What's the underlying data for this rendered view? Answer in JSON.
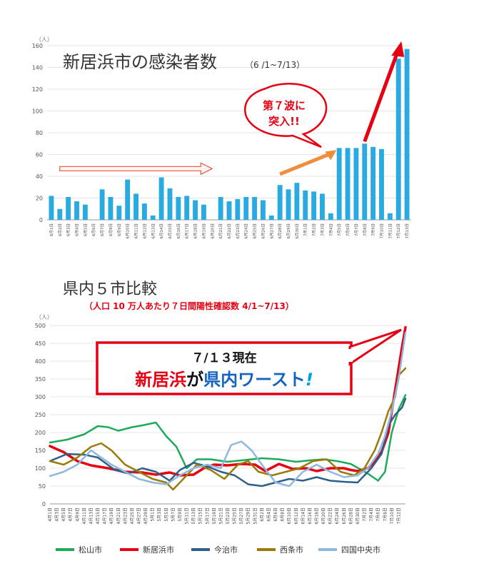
{
  "chart_data": [
    {
      "type": "bar",
      "title": "新居浜市の感染者数",
      "subtitle": "（6 /1~7/13）",
      "ylabel": "（人）",
      "ylim": [
        0,
        160
      ],
      "yticks": [
        0,
        20,
        40,
        60,
        80,
        100,
        120,
        140,
        160
      ],
      "color": "#29abe2",
      "categories": [
        "6月1日",
        "6月2日",
        "6月3日",
        "6月4日",
        "6月5日",
        "6月6日",
        "6月7日",
        "6月8日",
        "6月9日",
        "6月10日",
        "6月11日",
        "6月12日",
        "6月13日",
        "6月14日",
        "6月15日",
        "6月16日",
        "6月17日",
        "6月18日",
        "6月19日",
        "6月20日",
        "6月21日",
        "6月22日",
        "6月23日",
        "6月24日",
        "6月25日",
        "6月26日",
        "6月27日",
        "6月28日",
        "6月29日",
        "6月30日",
        "7月1日",
        "7月2日",
        "7月3日",
        "7月4日",
        "7月5日",
        "7月6日",
        "7月7日",
        "7月8日",
        "7月9日",
        "7月10日",
        "7月11日",
        "7月12日",
        "7月13日"
      ],
      "values": [
        22,
        10,
        21,
        17,
        14,
        0,
        28,
        21,
        13,
        37,
        24,
        15,
        4,
        39,
        29,
        21,
        22,
        18,
        14,
        0,
        21,
        17,
        19,
        21,
        21,
        18,
        4,
        32,
        28,
        34,
        27,
        26,
        24,
        6,
        66,
        66,
        66,
        70,
        67,
        65,
        6,
        148,
        157
      ],
      "annotations": [
        {
          "text": "第７波に突入!!",
          "color": "#e60012"
        }
      ],
      "arrows": [
        {
          "from_index": 1,
          "to_index": 19,
          "y": 47,
          "style": "hollow-red"
        },
        {
          "from_index": 27,
          "to_index": 33,
          "y_from": 42,
          "y_to": 64,
          "style": "orange"
        },
        {
          "from_index": 37,
          "to_index": 41,
          "y_from": 72,
          "y_to": 164,
          "style": "red-thick"
        }
      ]
    },
    {
      "type": "line",
      "title": "県内５市比較",
      "subtitle": "（人口 10 万人あたり７日間陽性確認数 4/1~7/13）",
      "ylabel": "（人）",
      "ylim": [
        0,
        500
      ],
      "yticks": [
        0,
        50,
        100,
        150,
        200,
        250,
        300,
        350,
        400,
        450,
        500
      ],
      "x_start": "4月1日",
      "x_end": "7月13日",
      "xticks": [
        "4月1日",
        "4月3日",
        "4月5日",
        "4月7日",
        "4月9日",
        "4月11日",
        "4月13日",
        "4月15日",
        "4月17日",
        "4月19日",
        "4月21日",
        "4月23日",
        "4月25日",
        "4月27日",
        "4月29日",
        "5月1日",
        "5月3日",
        "5月5日",
        "5月7日",
        "5月9日",
        "5月11日",
        "5月13日",
        "5月15日",
        "5月17日",
        "5月19日",
        "5月21日",
        "5月23日",
        "5月25日",
        "5月27日",
        "5月29日",
        "5月31日",
        "6月2日",
        "6月4日",
        "6月6日",
        "6月8日",
        "6月10日",
        "6月12日",
        "6月14日",
        "6月16日",
        "6月18日",
        "6月20日",
        "6月22日",
        "6月24日",
        "6月26日",
        "6月28日",
        "6月30日",
        "7月2日",
        "7月4日",
        "7月6日",
        "7月8日",
        "7月10日",
        "7月12日"
      ],
      "callout": {
        "line1": "７/１３現在",
        "line2_parts": [
          {
            "text": "新居浜",
            "color": "#e60012"
          },
          {
            "text": "が",
            "color": "#111111"
          },
          {
            "text": "県内ワースト",
            "color": "#1565c0"
          },
          {
            "text": "!",
            "color": "#00a0e9"
          }
        ]
      },
      "series": [
        {
          "name": "松山市",
          "color": "#1faa59",
          "width": 2.5,
          "points": [
            [
              0,
              172
            ],
            [
              5,
              180
            ],
            [
              10,
              195
            ],
            [
              14,
              218
            ],
            [
              17,
              215
            ],
            [
              20,
              205
            ],
            [
              24,
              215
            ],
            [
              27,
              220
            ],
            [
              31,
              228
            ],
            [
              34,
              190
            ],
            [
              37,
              160
            ],
            [
              40,
              100
            ],
            [
              43,
              125
            ],
            [
              47,
              125
            ],
            [
              52,
              118
            ],
            [
              57,
              123
            ],
            [
              62,
              128
            ],
            [
              67,
              125
            ],
            [
              72,
              118
            ],
            [
              76,
              122
            ],
            [
              80,
              125
            ],
            [
              84,
              120
            ],
            [
              88,
              112
            ],
            [
              93,
              85
            ],
            [
              96,
              65
            ],
            [
              98,
              90
            ],
            [
              100,
              200
            ],
            [
              102,
              265
            ],
            [
              104,
              305
            ]
          ]
        },
        {
          "name": "新居浜市",
          "color": "#e60012",
          "width": 3.5,
          "points": [
            [
              0,
              162
            ],
            [
              4,
              145
            ],
            [
              8,
              120
            ],
            [
              12,
              108
            ],
            [
              17,
              100
            ],
            [
              22,
              90
            ],
            [
              27,
              88
            ],
            [
              31,
              82
            ],
            [
              35,
              88
            ],
            [
              38,
              80
            ],
            [
              42,
              82
            ],
            [
              45,
              100
            ],
            [
              48,
              110
            ],
            [
              52,
              108
            ],
            [
              56,
              112
            ],
            [
              60,
              110
            ],
            [
              63,
              92
            ],
            [
              67,
              112
            ],
            [
              71,
              98
            ],
            [
              75,
              100
            ],
            [
              78,
              92
            ],
            [
              82,
              100
            ],
            [
              86,
              100
            ],
            [
              88,
              95
            ],
            [
              90,
              92
            ],
            [
              93,
              100
            ],
            [
              95,
              120
            ],
            [
              97,
              145
            ],
            [
              99,
              200
            ],
            [
              101,
              320
            ],
            [
              103,
              440
            ],
            [
              104,
              495
            ]
          ]
        },
        {
          "name": "今治市",
          "color": "#2e5f8a",
          "width": 2.5,
          "points": [
            [
              0,
              120
            ],
            [
              5,
              140
            ],
            [
              10,
              138
            ],
            [
              14,
              130
            ],
            [
              19,
              95
            ],
            [
              23,
              85
            ],
            [
              27,
              100
            ],
            [
              31,
              90
            ],
            [
              35,
              65
            ],
            [
              38,
              95
            ],
            [
              42,
              115
            ],
            [
              46,
              105
            ],
            [
              50,
              90
            ],
            [
              54,
              80
            ],
            [
              58,
              55
            ],
            [
              62,
              50
            ],
            [
              66,
              60
            ],
            [
              70,
              70
            ],
            [
              74,
              65
            ],
            [
              78,
              75
            ],
            [
              82,
              65
            ],
            [
              86,
              62
            ],
            [
              90,
              60
            ],
            [
              94,
              100
            ],
            [
              97,
              140
            ],
            [
              99,
              220
            ],
            [
              101,
              250
            ],
            [
              103,
              270
            ],
            [
              104,
              295
            ]
          ]
        },
        {
          "name": "西条市",
          "color": "#9a7b0a",
          "width": 2.5,
          "points": [
            [
              0,
              120
            ],
            [
              4,
              110
            ],
            [
              8,
              130
            ],
            [
              12,
              160
            ],
            [
              15,
              170
            ],
            [
              18,
              150
            ],
            [
              22,
              110
            ],
            [
              26,
              90
            ],
            [
              30,
              70
            ],
            [
              34,
              60
            ],
            [
              36,
              40
            ],
            [
              39,
              70
            ],
            [
              43,
              110
            ],
            [
              47,
              95
            ],
            [
              51,
              70
            ],
            [
              55,
              110
            ],
            [
              58,
              120
            ],
            [
              61,
              90
            ],
            [
              65,
              80
            ],
            [
              69,
              90
            ],
            [
              73,
              100
            ],
            [
              77,
              120
            ],
            [
              81,
              125
            ],
            [
              85,
              90
            ],
            [
              89,
              80
            ],
            [
              92,
              100
            ],
            [
              95,
              150
            ],
            [
              97,
              200
            ],
            [
              99,
              260
            ],
            [
              101,
              300
            ],
            [
              102,
              360
            ],
            [
              104,
              380
            ]
          ]
        },
        {
          "name": "四国中央市",
          "color": "#8fb8e0",
          "width": 2.5,
          "points": [
            [
              0,
              78
            ],
            [
              4,
              90
            ],
            [
              8,
              110
            ],
            [
              12,
              150
            ],
            [
              15,
              130
            ],
            [
              18,
              110
            ],
            [
              22,
              90
            ],
            [
              26,
              70
            ],
            [
              30,
              60
            ],
            [
              34,
              55
            ],
            [
              38,
              80
            ],
            [
              42,
              100
            ],
            [
              46,
              110
            ],
            [
              50,
              100
            ],
            [
              53,
              165
            ],
            [
              56,
              175
            ],
            [
              59,
              150
            ],
            [
              62,
              110
            ],
            [
              66,
              60
            ],
            [
              70,
              50
            ],
            [
              74,
              90
            ],
            [
              78,
              110
            ],
            [
              82,
              90
            ],
            [
              86,
              75
            ],
            [
              90,
              80
            ],
            [
              93,
              100
            ],
            [
              96,
              140
            ],
            [
              98,
              190
            ],
            [
              100,
              260
            ],
            [
              102,
              350
            ],
            [
              104,
              480
            ]
          ]
        }
      ]
    }
  ]
}
